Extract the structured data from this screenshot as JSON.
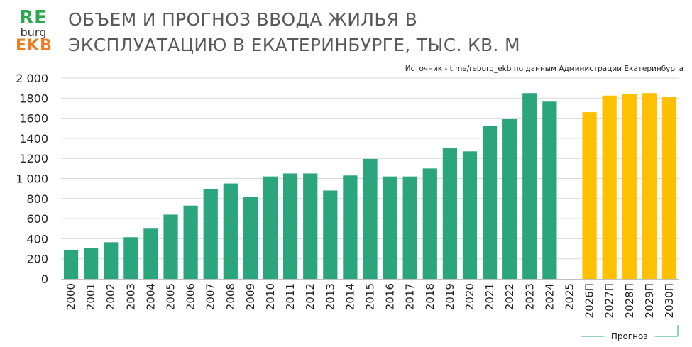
{
  "logo": {
    "line1": "RE",
    "line2": "burg",
    "line3": "EKB",
    "color1": "#2ea84f",
    "color3": "#ee7d22"
  },
  "title_line1": "ОБЪЕМ И ПРОГНОЗ ВВОДА ЖИЛЬЯ В",
  "title_line2": "ЭКСПЛУАТАЦИЮ В ЕКАТЕРИНБУРГЕ, ТЫС. КВ. М",
  "source": "Источник - t.me/reburg_ekb по данным Администрации Екатеринбурга",
  "chart_data": {
    "type": "bar",
    "title": "ОБЪЕМ И ПРОГНОЗ ВВОДА ЖИЛЬЯ В ЭКСПЛУАТАЦИЮ В ЕКАТЕРИНБУРГЕ, ТЫС. КВ. М",
    "categories": [
      "2000",
      "2001",
      "2002",
      "2003",
      "2004",
      "2005",
      "2006",
      "2007",
      "2008",
      "2009",
      "2010",
      "2011",
      "2012",
      "2013",
      "2014",
      "2015",
      "2016",
      "2017",
      "2018",
      "2019",
      "2020",
      "2021",
      "2022",
      "2023",
      "2024",
      "2025",
      "2026П",
      "2027П",
      "2028П",
      "2029П",
      "2030П"
    ],
    "values": [
      290,
      305,
      365,
      415,
      500,
      640,
      730,
      895,
      950,
      815,
      1020,
      1050,
      1050,
      880,
      1030,
      1195,
      1020,
      1020,
      1100,
      1300,
      1270,
      1520,
      1590,
      1850,
      1765,
      null,
      1660,
      1825,
      1840,
      1850,
      1815
    ],
    "forecast_from_index": 26,
    "colors": {
      "actual": "#2ba67c",
      "forecast": "#ffc000"
    },
    "ylim": [
      0,
      2000
    ],
    "yticks": [
      0,
      200,
      400,
      600,
      800,
      1000,
      1200,
      1400,
      1600,
      1800,
      2000
    ],
    "ytick_labels": [
      "0",
      "200",
      "400",
      "600",
      "800",
      "1 000",
      "1200",
      "1400",
      "1600",
      "1800",
      "2 000"
    ],
    "grid": true,
    "forecast_bracket_label": "Прогноз"
  }
}
